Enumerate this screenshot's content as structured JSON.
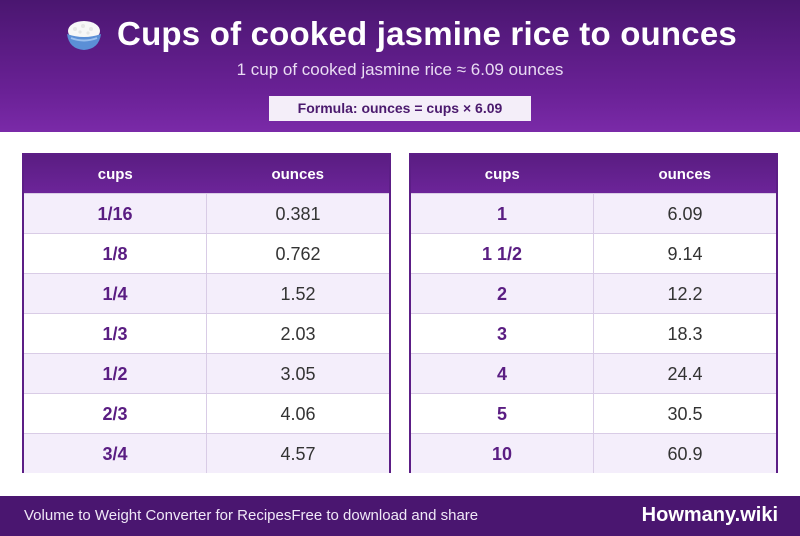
{
  "header": {
    "icon": "rice-bowl-icon",
    "title": "Cups of cooked jasmine rice to ounces",
    "subtitle": "1 cup of cooked jasmine rice ≈ 6.09 ounces",
    "formula": "Formula: ounces = cups × 6.09"
  },
  "tables": [
    {
      "headers": [
        "cups",
        "ounces"
      ],
      "rows": [
        [
          "1/16",
          "0.381"
        ],
        [
          "1/8",
          "0.762"
        ],
        [
          "1/4",
          "1.52"
        ],
        [
          "1/3",
          "2.03"
        ],
        [
          "1/2",
          "3.05"
        ],
        [
          "2/3",
          "4.06"
        ],
        [
          "3/4",
          "4.57"
        ]
      ]
    },
    {
      "headers": [
        "cups",
        "ounces"
      ],
      "rows": [
        [
          "1",
          "6.09"
        ],
        [
          "1 1/2",
          "9.14"
        ],
        [
          "2",
          "12.2"
        ],
        [
          "3",
          "18.3"
        ],
        [
          "4",
          "24.4"
        ],
        [
          "5",
          "30.5"
        ],
        [
          "10",
          "60.9"
        ]
      ]
    }
  ],
  "footer": {
    "left_text": "Volume to Weight Converter for RecipesFree to download and share",
    "brand": "Howmany.wiki"
  },
  "colors": {
    "header_bg": "#5a1d82",
    "accent": "#5a1d82",
    "footer_bg": "#4a1670"
  }
}
